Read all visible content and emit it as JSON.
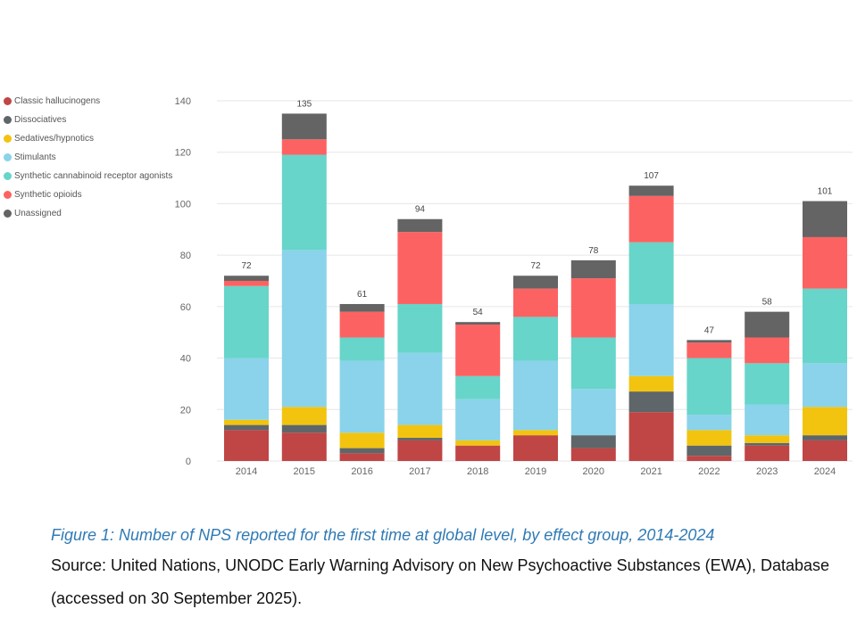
{
  "chart_data": {
    "type": "bar",
    "stacked": true,
    "categories": [
      "2014",
      "2015",
      "2016",
      "2017",
      "2018",
      "2019",
      "2020",
      "2021",
      "2022",
      "2023",
      "2024"
    ],
    "series": [
      {
        "name": "Classic hallucinogens",
        "color": "#c04545",
        "values": [
          12,
          11,
          3,
          8,
          6,
          10,
          5,
          19,
          2,
          6,
          8
        ]
      },
      {
        "name": "Dissociatives",
        "color": "#5f6669",
        "values": [
          2,
          3,
          2,
          1,
          0,
          0,
          5,
          8,
          4,
          1,
          2
        ]
      },
      {
        "name": "Sedatives/hypnotics",
        "color": "#f2c40f",
        "values": [
          2,
          7,
          6,
          5,
          2,
          2,
          0,
          6,
          6,
          3,
          11
        ]
      },
      {
        "name": "Stimulants",
        "color": "#8ad3ea",
        "values": [
          24,
          61,
          28,
          28,
          16,
          27,
          18,
          28,
          6,
          12,
          17
        ]
      },
      {
        "name": "Synthetic cannabinoid receptor agonists",
        "color": "#67d5c9",
        "values": [
          28,
          37,
          9,
          19,
          9,
          17,
          20,
          24,
          22,
          16,
          29
        ]
      },
      {
        "name": "Synthetic opioids",
        "color": "#fd6262",
        "values": [
          2,
          6,
          10,
          28,
          20,
          11,
          23,
          18,
          6,
          10,
          20
        ]
      },
      {
        "name": "Unassigned",
        "color": "#646464",
        "values": [
          2,
          10,
          3,
          5,
          1,
          5,
          7,
          4,
          1,
          10,
          14
        ]
      }
    ],
    "totals": [
      "72",
      "135",
      "61",
      "94",
      "54",
      "72",
      "78",
      "107",
      "47",
      "58",
      "101"
    ],
    "y_ticks": [
      "0",
      "20",
      "40",
      "60",
      "80",
      "100",
      "120",
      "140"
    ],
    "ylim": [
      0,
      140
    ],
    "xlabel": "",
    "ylabel": "",
    "legend_position": "top-left"
  },
  "caption": "Figure 1: Number of NPS reported for the first time at global level, by effect group, 2014-2024",
  "source": "Source: United Nations, UNODC Early Warning Advisory on New Psychoactive Substances (EWA), Database (accessed on 30 September 2025)."
}
